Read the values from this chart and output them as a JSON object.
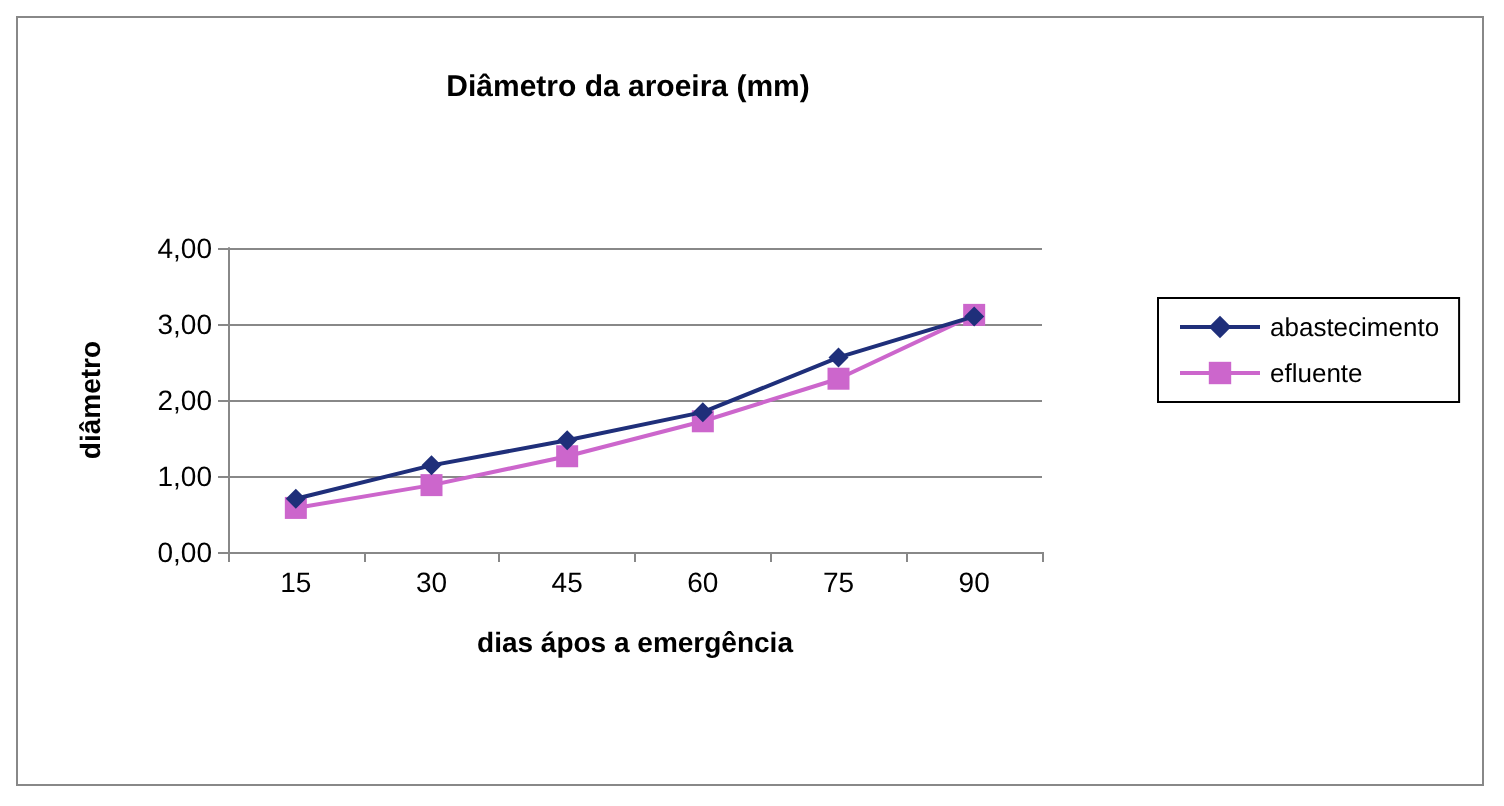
{
  "chart_data": {
    "type": "line",
    "title": "Diâmetro da aroeira (mm)",
    "xlabel": "dias ápos a emergência",
    "ylabel": "diâmetro",
    "categories": [
      "15",
      "30",
      "45",
      "60",
      "75",
      "90"
    ],
    "series": [
      {
        "name": "abastecimento",
        "color": "#1f2f7a",
        "marker": "diamond",
        "values": [
          0.7,
          1.14,
          1.47,
          1.84,
          2.56,
          3.1
        ]
      },
      {
        "name": "efluente",
        "color": "#cc66cc",
        "marker": "square",
        "values": [
          0.58,
          0.88,
          1.26,
          1.72,
          2.28,
          3.12
        ]
      }
    ],
    "ylim": [
      0,
      4
    ],
    "yticks": [
      {
        "value": 0,
        "label": "0,00"
      },
      {
        "value": 1,
        "label": "1,00"
      },
      {
        "value": 2,
        "label": "2,00"
      },
      {
        "value": 3,
        "label": "3,00"
      },
      {
        "value": 4,
        "label": "4,00"
      }
    ],
    "grid": "y",
    "legend": "right"
  }
}
